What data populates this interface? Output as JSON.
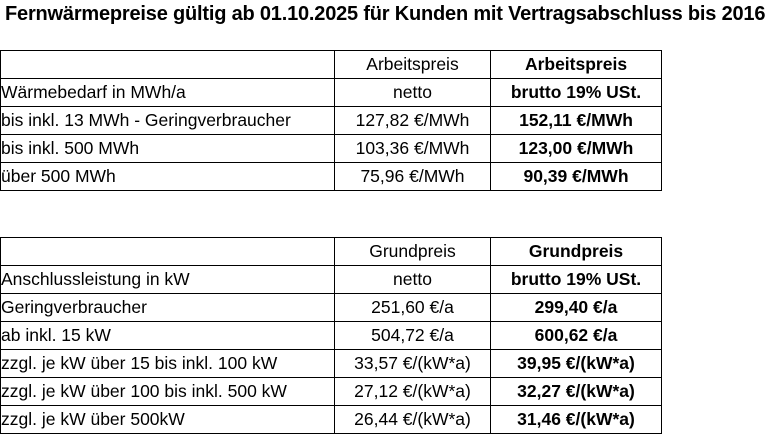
{
  "title": "Fernwärmepreise gültig ab 01.10.2025 für Kunden mit Vertragsabschluss bis 2016",
  "colors": {
    "text": "#000000",
    "background": "#ffffff",
    "border": "#000000"
  },
  "tables": [
    {
      "row_label_header": "Wärmebedarf in MWh/a",
      "netto_header": "Arbeitspreis",
      "brutto_header": "Arbeitspreis",
      "netto_subheader": "netto",
      "brutto_subheader": "brutto 19% USt.",
      "rows": [
        {
          "label": "bis inkl. 13 MWh - Geringverbraucher",
          "netto": "127,82 €/MWh",
          "brutto": "152,11 €/MWh"
        },
        {
          "label": "bis inkl. 500 MWh",
          "netto": "103,36 €/MWh",
          "brutto": "123,00 €/MWh"
        },
        {
          "label": "über 500 MWh",
          "netto": "75,96 €/MWh",
          "brutto": "90,39 €/MWh"
        }
      ]
    },
    {
      "row_label_header": "Anschlussleistung in kW",
      "netto_header": "Grundpreis",
      "brutto_header": "Grundpreis",
      "netto_subheader": "netto",
      "brutto_subheader": "brutto 19% USt.",
      "rows": [
        {
          "label": "Geringverbraucher",
          "netto": "251,60 €/a",
          "brutto": "299,40 €/a"
        },
        {
          "label": "ab inkl. 15 kW",
          "netto": "504,72 €/a",
          "brutto": "600,62 €/a"
        },
        {
          "label": "zzgl. je kW über 15 bis inkl. 100 kW",
          "netto": "33,57 €/(kW*a)",
          "brutto": "39,95 €/(kW*a)"
        },
        {
          "label": "zzgl. je kW über 100 bis inkl. 500 kW",
          "netto": "27,12 €/(kW*a)",
          "brutto": "32,27 €/(kW*a)"
        },
        {
          "label": "zzgl. je kW über 500kW",
          "netto": "26,44 €/(kW*a)",
          "brutto": "31,46 €/(kW*a)"
        }
      ]
    }
  ]
}
